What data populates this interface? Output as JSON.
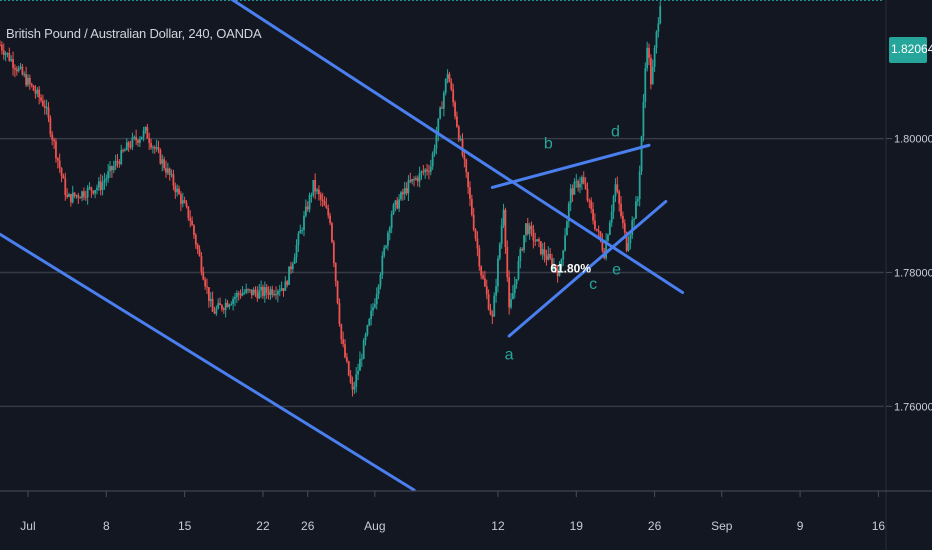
{
  "header": {
    "title": "British Pound / Australian Dollar, 240, OANDA"
  },
  "price_badge": {
    "value": "1.82064",
    "bg": "#26a69a"
  },
  "colors": {
    "background": "#131722",
    "up": "#26a69a",
    "down": "#ef5350",
    "trendline": "#4a7ff0",
    "grid": "#363a45",
    "axis_text": "#c7ccd6",
    "wave_label": "#26a69a"
  },
  "chart_data": {
    "type": "candlestick",
    "title": "British Pound / Australian Dollar, 240, OANDA",
    "y_axis": {
      "ticks": [
        1.76,
        1.78,
        1.8
      ],
      "tick_labels": [
        "1.76000",
        "1.78000",
        "1.80000"
      ],
      "range": [
        1.7475,
        1.8207
      ],
      "position": "right"
    },
    "x_axis": {
      "ticks": [
        {
          "day": 1,
          "label": "Jul"
        },
        {
          "day": 8,
          "label": "8"
        },
        {
          "day": 15,
          "label": "15"
        },
        {
          "day": 22,
          "label": "22"
        },
        {
          "day": 26,
          "label": "26"
        },
        {
          "day": 32,
          "label": "Aug"
        },
        {
          "day": 43,
          "label": "12"
        },
        {
          "day": 50,
          "label": "19"
        },
        {
          "day": 57,
          "label": "26"
        },
        {
          "day": 63,
          "label": "Sep"
        },
        {
          "day": 70,
          "label": "9"
        },
        {
          "day": 77,
          "label": "16"
        }
      ],
      "range_days": [
        -1.5,
        77.5
      ],
      "units": "days since Jul 1"
    },
    "last_price": 1.82064,
    "annotations": [
      {
        "text": "a",
        "day": 44.0,
        "price": 1.767
      },
      {
        "text": "b",
        "day": 47.5,
        "price": 1.7985
      },
      {
        "text": "c",
        "day": 51.5,
        "price": 1.7775
      },
      {
        "text": "d",
        "day": 53.5,
        "price": 1.8003
      },
      {
        "text": "e",
        "day": 53.6,
        "price": 1.7797
      },
      {
        "text": "61.80%",
        "day": 49.5,
        "price": 1.78
      }
    ],
    "trendlines": [
      {
        "from": {
          "day": 5.5,
          "price": 1.8357
        },
        "to": {
          "day": 59.5,
          "price": 1.777
        }
      },
      {
        "from": {
          "day": -1.5,
          "price": 1.7857
        },
        "to": {
          "day": 35.5,
          "price": 1.7475
        }
      },
      {
        "from": {
          "day": 42.5,
          "price": 1.7927
        },
        "to": {
          "day": 56.5,
          "price": 1.799
        }
      },
      {
        "from": {
          "day": 44.0,
          "price": 1.7705
        },
        "to": {
          "day": 58.0,
          "price": 1.7906
        }
      }
    ],
    "candles_anchor_path": [
      {
        "day": -1.5,
        "close": 1.814
      },
      {
        "day": 2.5,
        "close": 1.805
      },
      {
        "day": 4.5,
        "close": 1.791
      },
      {
        "day": 7.5,
        "close": 1.793
      },
      {
        "day": 10.0,
        "close": 1.799
      },
      {
        "day": 11.5,
        "close": 1.801
      },
      {
        "day": 13.5,
        "close": 1.795
      },
      {
        "day": 15.5,
        "close": 1.788
      },
      {
        "day": 17.5,
        "close": 1.774
      },
      {
        "day": 20.0,
        "close": 1.777
      },
      {
        "day": 22.0,
        "close": 1.777
      },
      {
        "day": 24.0,
        "close": 1.778
      },
      {
        "day": 26.5,
        "close": 1.793
      },
      {
        "day": 28.0,
        "close": 1.788
      },
      {
        "day": 29.0,
        "close": 1.77
      },
      {
        "day": 30.0,
        "close": 1.762
      },
      {
        "day": 32.0,
        "close": 1.776
      },
      {
        "day": 33.5,
        "close": 1.789
      },
      {
        "day": 35.0,
        "close": 1.793
      },
      {
        "day": 37.0,
        "close": 1.796
      },
      {
        "day": 38.5,
        "close": 1.81
      },
      {
        "day": 40.0,
        "close": 1.796
      },
      {
        "day": 41.5,
        "close": 1.78
      },
      {
        "day": 42.5,
        "close": 1.773
      },
      {
        "day": 43.5,
        "close": 1.79
      },
      {
        "day": 44.0,
        "close": 1.774
      },
      {
        "day": 45.5,
        "close": 1.787
      },
      {
        "day": 47.0,
        "close": 1.783
      },
      {
        "day": 48.5,
        "close": 1.78
      },
      {
        "day": 49.5,
        "close": 1.792
      },
      {
        "day": 50.5,
        "close": 1.794
      },
      {
        "day": 51.5,
        "close": 1.788
      },
      {
        "day": 52.5,
        "close": 1.783
      },
      {
        "day": 53.5,
        "close": 1.793
      },
      {
        "day": 54.5,
        "close": 1.784
      },
      {
        "day": 55.5,
        "close": 1.791
      },
      {
        "day": 56.0,
        "close": 1.805
      },
      {
        "day": 56.3,
        "close": 1.815
      },
      {
        "day": 56.7,
        "close": 1.808
      },
      {
        "day": 57.0,
        "close": 1.813
      },
      {
        "day": 57.5,
        "close": 1.8206
      }
    ]
  }
}
